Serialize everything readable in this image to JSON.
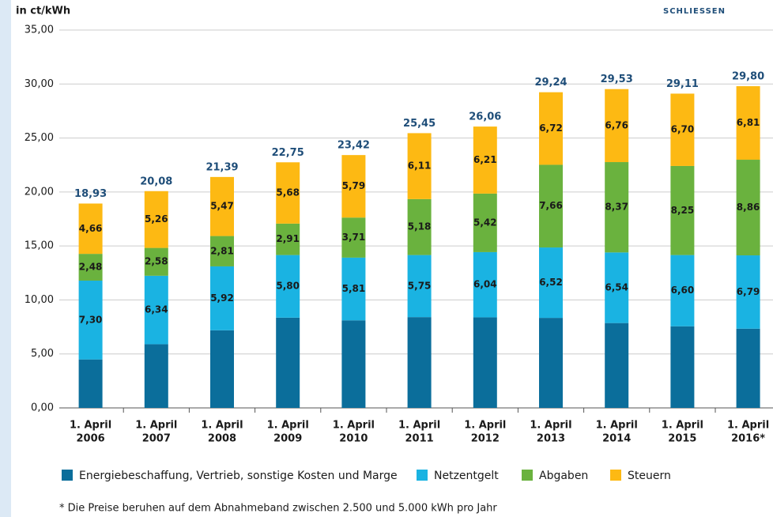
{
  "close_button": "SCHLIESSEN",
  "chart_data": {
    "type": "stacked_bar",
    "y_label": "in ct/kWh",
    "footnote": "* Die Preise beruhen auf dem Abnahmeband zwischen 2.500 und 5.000 kWh pro Jahr",
    "categories": [
      [
        "1. April",
        "2006"
      ],
      [
        "1. April",
        "2007"
      ],
      [
        "1. April",
        "2008"
      ],
      [
        "1. April",
        "2009"
      ],
      [
        "1. April",
        "2010"
      ],
      [
        "1. April",
        "2011"
      ],
      [
        "1. April",
        "2012"
      ],
      [
        "1. April",
        "2013"
      ],
      [
        "1. April",
        "2014"
      ],
      [
        "1. April",
        "2015"
      ],
      [
        "1. April",
        "2016*"
      ]
    ],
    "ylim": [
      0,
      35
    ],
    "yticks": [
      {
        "value": 0,
        "label": "0,00"
      },
      {
        "value": 5,
        "label": "5,00"
      },
      {
        "value": 10,
        "label": "10,00"
      },
      {
        "value": 15,
        "label": "15,00"
      },
      {
        "value": 20,
        "label": "20,00"
      },
      {
        "value": 25,
        "label": "25,00"
      },
      {
        "value": 30,
        "label": "30,00"
      },
      {
        "value": 35,
        "label": "35,00"
      }
    ],
    "grid": true,
    "series": [
      {
        "name": "Energiebeschaffung, Vertrieb, sonstige Kosten und Marge",
        "color": "#0b6e9b",
        "values": [
          4.49,
          5.9,
          7.19,
          8.36,
          8.11,
          8.41,
          8.39,
          8.34,
          7.86,
          7.56,
          7.34
        ]
      },
      {
        "name": "Netzentgelt",
        "color": "#1ab3e2",
        "values": [
          7.3,
          6.34,
          5.92,
          5.8,
          5.81,
          5.75,
          6.04,
          6.52,
          6.54,
          6.6,
          6.79
        ],
        "value_labels": [
          "7,30",
          "6,34",
          "5,92",
          "5,80",
          "5,81",
          "5,75",
          "6,04",
          "6,52",
          "6,54",
          "6,60",
          "6,79"
        ]
      },
      {
        "name": "Abgaben",
        "color": "#6ab23e",
        "values": [
          2.48,
          2.58,
          2.81,
          2.91,
          3.71,
          5.18,
          5.42,
          7.66,
          8.37,
          8.25,
          8.86
        ],
        "value_labels": [
          "2,48",
          "2,58",
          "2,81",
          "2,91",
          "3,71",
          "5,18",
          "5,42",
          "7,66",
          "8,37",
          "8,25",
          "8,86"
        ]
      },
      {
        "name": "Steuern",
        "color": "#fdb913",
        "values": [
          4.66,
          5.26,
          5.47,
          5.68,
          5.79,
          6.11,
          6.21,
          6.72,
          6.76,
          6.7,
          6.81
        ],
        "value_labels": [
          "4,66",
          "5,26",
          "5,47",
          "5,68",
          "5,79",
          "6,11",
          "6,21",
          "6,72",
          "6,76",
          "6,70",
          "6,81"
        ]
      }
    ],
    "totals": [
      18.93,
      20.08,
      21.39,
      22.75,
      23.42,
      25.45,
      26.06,
      29.24,
      29.53,
      29.11,
      29.8
    ],
    "total_labels": [
      "18,93",
      "20,08",
      "21,39",
      "22,75",
      "23,42",
      "25,45",
      "26,06",
      "29,24",
      "29,53",
      "29,11",
      "29,80"
    ]
  }
}
